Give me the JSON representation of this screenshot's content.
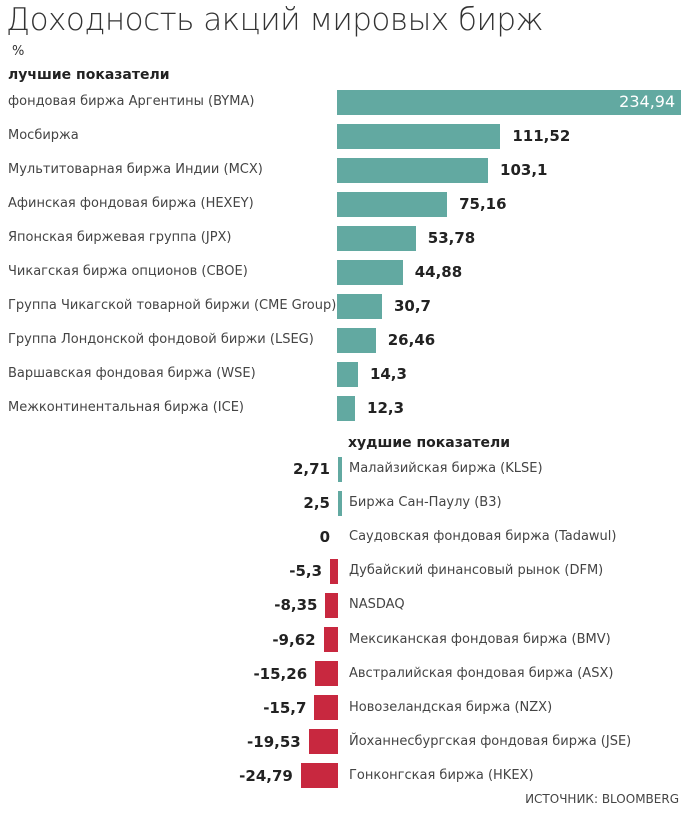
{
  "colors": {
    "positive": "#62a9a1",
    "negative": "#c8283f"
  },
  "chart_data": {
    "type": "bar",
    "title": "Доходность акций мировых бирж",
    "unit": "%",
    "source": "ИСТОЧНИК: BLOOMBERG",
    "groups": [
      {
        "label": "лучшие показатели",
        "categories": [
          "фондовая биржа Аргентины (BYMA)",
          "Мосбиржа",
          "Мультитоварная биржа Индии (MCX)",
          "Афинская фондовая биржа (HEXEY)",
          "Японская биржевая группа (JPX)",
          "Чикагская биржа опционов (CBOE)",
          "Группа Чикагской товарной биржи (CME Group)",
          "Группа Лондонской фондовой биржи (LSEG)",
          "Варшавская фондовая биржа (WSE)",
          "Межконтинентальная биржа (ICE)"
        ],
        "values": [
          234.94,
          111.52,
          103.1,
          75.16,
          53.78,
          44.88,
          30.7,
          26.46,
          14.3,
          12.3
        ],
        "labels": [
          "234,94",
          "111,52",
          "103,1",
          "75,16",
          "53,78",
          "44,88",
          "30,7",
          "26,46",
          "14,3",
          "12,3"
        ]
      },
      {
        "label": "худшие показатели",
        "categories": [
          "Малайзийская биржа (KLSE)",
          "Биржа Сан-Паулу (B3)",
          "Саудовская фондовая биржа (Tadawul)",
          "Дубайский финансовый рынок (DFM)",
          "NASDAQ",
          "Мексиканская фондовая биржа (BMV)",
          "Австралийская фондовая биржа (ASX)",
          "Новозеландская биржа (NZX)",
          "Йоханнесбургская фондовая биржа (JSE)",
          "Гонконгская биржа (HKEX)"
        ],
        "values": [
          2.71,
          2.5,
          0,
          -5.3,
          -8.35,
          -9.62,
          -15.26,
          -15.7,
          -19.53,
          -24.79
        ],
        "labels": [
          "2,71",
          "2,5",
          "0",
          "-5,3",
          "-8,35",
          "-9,62",
          "-15,26",
          "-15,7",
          "-19,53",
          "-24,79"
        ]
      }
    ]
  }
}
